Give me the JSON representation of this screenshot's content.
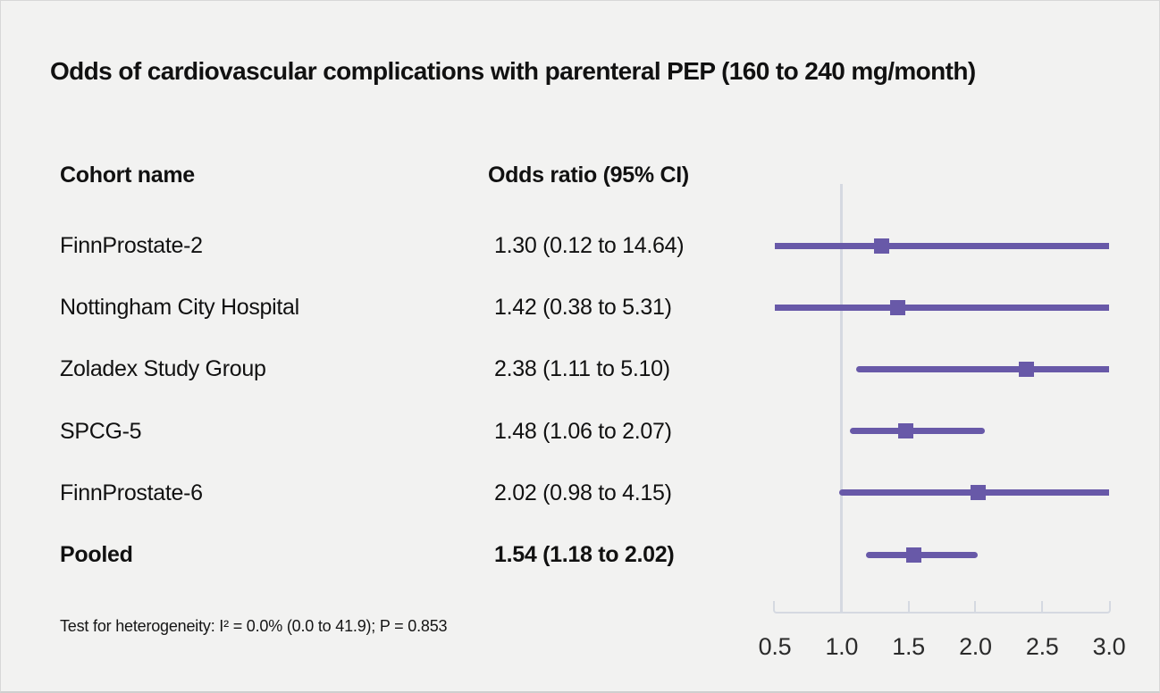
{
  "figure": {
    "title": "Odds of cardiovascular complications with parenteral PEP (160 to 240 mg/month)",
    "columns": {
      "cohort": "Cohort name",
      "odds_ratio": "Odds ratio (95% CI)"
    },
    "footnote": "Test for heterogeneity: I² = 0.0% (0.0 to 41.9); P = 0.853"
  },
  "chart_data": {
    "type": "forest",
    "title": "Odds of cardiovascular complications with parenteral PEP (160 to 240 mg/month)",
    "xlabel": "Odds ratio",
    "xlim": [
      0.5,
      3.0
    ],
    "x_ticks": [
      0.5,
      1.0,
      1.5,
      2.0,
      2.5,
      3.0
    ],
    "x_tick_labels": [
      "0.5",
      "1.0",
      "1.5",
      "2.0",
      "2.5",
      "3.0"
    ],
    "reference_line": 1.0,
    "grid": false,
    "legend": "none",
    "colors": {
      "marker": "#6859a8",
      "ci_line": "#6859a8",
      "axis": "#d5d9e1",
      "background": "#f2f2f1"
    },
    "rows": [
      {
        "label": "FinnProstate-2",
        "or_text": "1.30 (0.12 to 14.64)",
        "or": 1.3,
        "ci_low": 0.12,
        "ci_high": 14.64,
        "bold": false
      },
      {
        "label": "Nottingham City Hospital",
        "or_text": "1.42 (0.38 to 5.31)",
        "or": 1.42,
        "ci_low": 0.38,
        "ci_high": 5.31,
        "bold": false
      },
      {
        "label": "Zoladex Study Group",
        "or_text": "2.38 (1.11 to 5.10)",
        "or": 2.38,
        "ci_low": 1.11,
        "ci_high": 5.1,
        "bold": false
      },
      {
        "label": "SPCG-5",
        "or_text": "1.48 (1.06 to 2.07)",
        "or": 1.48,
        "ci_low": 1.06,
        "ci_high": 2.07,
        "bold": false
      },
      {
        "label": "FinnProstate-6",
        "or_text": "2.02 (0.98 to 4.15)",
        "or": 2.02,
        "ci_low": 0.98,
        "ci_high": 4.15,
        "bold": false
      },
      {
        "label": "Pooled",
        "or_text": "1.54 (1.18 to 2.02)",
        "or": 1.54,
        "ci_low": 1.18,
        "ci_high": 2.02,
        "bold": true
      }
    ]
  }
}
